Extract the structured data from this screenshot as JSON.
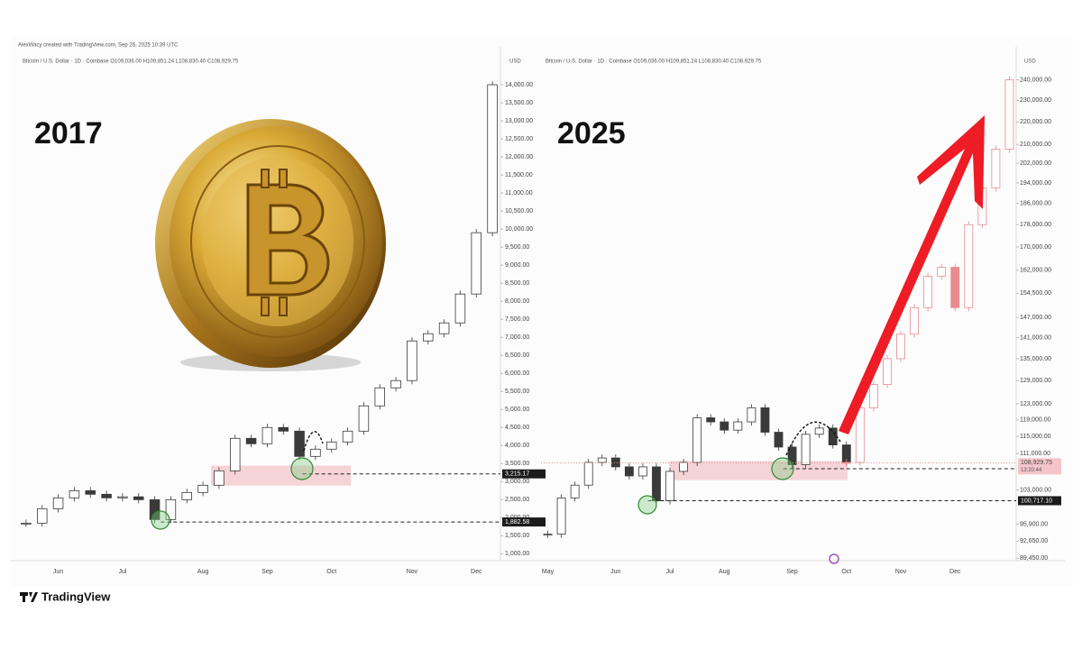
{
  "header": {
    "credit": "AlexWacy created with TradingView.com, Sep 26, 2025 10:39 UTC",
    "brand": "TradingView"
  },
  "chart_data": [
    {
      "type": "candlestick",
      "year_label": "2017",
      "symbol": "Bitcoin / U.S. Dollar · 1D · Coinbase  O109,036.00  H109,851.24  L108,830.40  C108,929.75",
      "currency": "USD",
      "categories": [
        null,
        null,
        "Jun",
        null,
        null,
        null,
        "Jul",
        null,
        null,
        null,
        null,
        "Aug",
        null,
        null,
        null,
        "Sep",
        null,
        null,
        null,
        "Oct",
        null,
        null,
        null,
        null,
        "Nov",
        null,
        null,
        null,
        "Dec",
        null
      ],
      "series": [
        {
          "color": "#3a3a3a",
          "values": [
            1850,
            2250,
            2550,
            2750,
            2650,
            2550,
            2580,
            2500,
            1950,
            2500,
            2700,
            2900,
            3300,
            4200,
            4050,
            4500,
            4400,
            3700,
            3900,
            4100,
            4400,
            5100,
            5600,
            5800,
            6900,
            7100,
            7400,
            8200,
            9900,
            14000
          ]
        }
      ],
      "ylim": [
        810,
        14900
      ],
      "log": false,
      "yticks": [
        {
          "value": 1000,
          "label": "1,000.00"
        },
        {
          "value": 1500,
          "label": "1,500.00"
        },
        {
          "value": 2000,
          "label": "2,000.00"
        },
        {
          "value": 2500,
          "label": "2,500.00"
        },
        {
          "value": 3000,
          "label": "3,000.00"
        },
        {
          "value": 3500,
          "label": "3,500.00"
        },
        {
          "value": 4000,
          "label": "4,000.00"
        },
        {
          "value": 4500,
          "label": "4,500.00"
        },
        {
          "value": 5000,
          "label": "5,000.00"
        },
        {
          "value": 5500,
          "label": "5,500.00"
        },
        {
          "value": 6000,
          "label": "6,000.00"
        },
        {
          "value": 6500,
          "label": "6,500.00"
        },
        {
          "value": 7000,
          "label": "7,000.00"
        },
        {
          "value": 7500,
          "label": "7,500.00"
        },
        {
          "value": 8000,
          "label": "8,000.00"
        },
        {
          "value": 8500,
          "label": "8,500.00"
        },
        {
          "value": 9000,
          "label": "9,000.00"
        },
        {
          "value": 9500,
          "label": "9,500.00"
        },
        {
          "value": 10000,
          "label": "10,000.00"
        },
        {
          "value": 10500,
          "label": "10,500.00"
        },
        {
          "value": 11000,
          "label": "11,000.00"
        },
        {
          "value": 11500,
          "label": "11,500.00"
        },
        {
          "value": 12000,
          "label": "12,000.00"
        },
        {
          "value": 12500,
          "label": "12,500.00"
        },
        {
          "value": 13000,
          "label": "13,000.00"
        },
        {
          "value": 13500,
          "label": "13,500.00"
        },
        {
          "value": 14000,
          "label": "14,000.00"
        }
      ],
      "zone": [
        2890,
        3444
      ],
      "levels": [
        {
          "value": 3215.17,
          "label": "3,215.17"
        },
        {
          "value": 1882.58,
          "label": "1,882.58"
        }
      ]
    },
    {
      "type": "candlestick",
      "year_label": "2025",
      "symbol": "Bitcoin / U.S. Dollar · 1D · Coinbase  O109,036.00  H109,851.24  L108,830.40  C108,929.75",
      "currency": "USD",
      "categories": [
        "May",
        null,
        null,
        null,
        null,
        "Jun",
        null,
        null,
        null,
        "Jul",
        null,
        null,
        null,
        "Aug",
        null,
        null,
        null,
        null,
        "Sep",
        null,
        null,
        null,
        "Oct",
        null,
        null,
        null,
        "Nov",
        null,
        null,
        null,
        "Dec",
        null,
        null,
        null,
        null
      ],
      "series": [
        {
          "color": "#3a3a3a",
          "values": [
            94000,
            101300,
            104000,
            109000,
            110000,
            108000,
            106000,
            108000,
            100700,
            107000,
            109000,
            119500,
            118500,
            116500,
            118500,
            122000,
            116000,
            112500,
            108500,
            115500,
            117000,
            113000,
            109000,
            null,
            null,
            null,
            null,
            null,
            null,
            null,
            null,
            null,
            null,
            null,
            null
          ]
        },
        {
          "color": "#e88a8f",
          "values": [
            null,
            null,
            null,
            null,
            null,
            null,
            null,
            null,
            null,
            null,
            null,
            null,
            null,
            null,
            null,
            null,
            null,
            null,
            null,
            null,
            null,
            null,
            109000,
            122000,
            128000,
            135000,
            142000,
            150000,
            160000,
            163000,
            150000,
            178000,
            192000,
            208000,
            240000
          ]
        }
      ],
      "ylim": [
        89000,
        254000
      ],
      "log": true,
      "yticks": [
        {
          "value": 89450,
          "label": "89,450.00"
        },
        {
          "value": 92650,
          "label": "92,650.00"
        },
        {
          "value": 95900,
          "label": "95,900.00"
        },
        {
          "value": 103000,
          "label": "103,000.00"
        },
        {
          "value": 111000,
          "label": "111,000.00"
        },
        {
          "value": 115000,
          "label": "115,000.00"
        },
        {
          "value": 119000,
          "label": "119,000.00"
        },
        {
          "value": 123000,
          "label": "123,000.00"
        },
        {
          "value": 129000,
          "label": "129,000.00"
        },
        {
          "value": 135000,
          "label": "135,000.00"
        },
        {
          "value": 141000,
          "label": "141,000.00"
        },
        {
          "value": 147000,
          "label": "147,000.00"
        },
        {
          "value": 154500,
          "label": "154,500.00"
        },
        {
          "value": 162000,
          "label": "162,000.00"
        },
        {
          "value": 170000,
          "label": "170,000.00"
        },
        {
          "value": 178000,
          "label": "178,000.00"
        },
        {
          "value": 186000,
          "label": "186,000.00"
        },
        {
          "value": 194000,
          "label": "194,000.00"
        },
        {
          "value": 202000,
          "label": "202,000.00"
        },
        {
          "value": 210000,
          "label": "210,000.00"
        },
        {
          "value": 220000,
          "label": "220,000.00"
        },
        {
          "value": 230000,
          "label": "230,000.00"
        },
        {
          "value": 240000,
          "label": "240,000.00"
        }
      ],
      "zone": [
        105100,
        109300
      ],
      "levels": [
        {
          "value": 107588.68,
          "label": "107,588.68"
        },
        {
          "value": 100717.1,
          "label": "100,717.10"
        }
      ],
      "last": {
        "value": 108929.75,
        "label": "108,929.75",
        "countdown": "13:20:44"
      }
    }
  ]
}
